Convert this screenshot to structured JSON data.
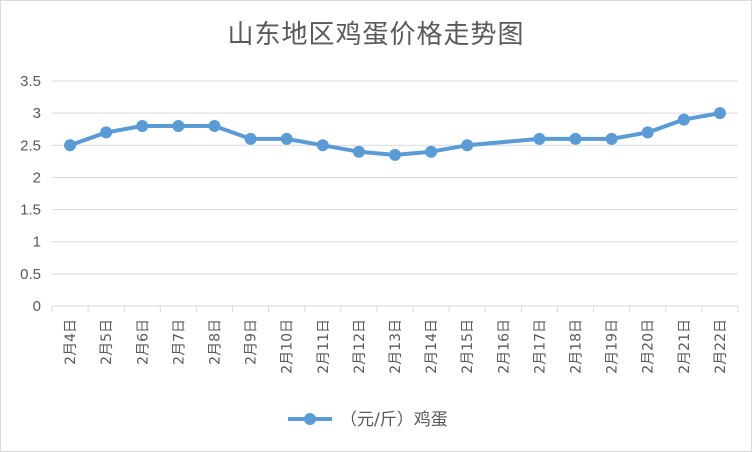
{
  "chart_data": {
    "type": "line",
    "title": "山东地区鸡蛋价格走势图",
    "categories": [
      "2月4日",
      "2月5日",
      "2月6日",
      "2月7日",
      "2月8日",
      "2月9日",
      "2月10日",
      "2月11日",
      "2月12日",
      "2月13日",
      "2月14日",
      "2月15日",
      "2月16日",
      "2月17日",
      "2月18日",
      "2月19日",
      "2月20日",
      "2月21日",
      "2月22日"
    ],
    "series": [
      {
        "name": "（元/斤）鸡蛋",
        "values": [
          2.5,
          2.7,
          2.8,
          2.8,
          2.8,
          2.6,
          2.6,
          2.5,
          2.4,
          2.35,
          2.4,
          2.5,
          null,
          2.6,
          2.6,
          2.6,
          2.7,
          2.9,
          3.0
        ],
        "color": "#5b9bd5"
      }
    ],
    "ylim": [
      0,
      3.5
    ],
    "yticks": [
      "0",
      "0.5",
      "1",
      "1.5",
      "2",
      "2.5",
      "3",
      "3.5"
    ],
    "grid": true,
    "legend": "bottom",
    "gridColor": "#d9d9d9"
  }
}
